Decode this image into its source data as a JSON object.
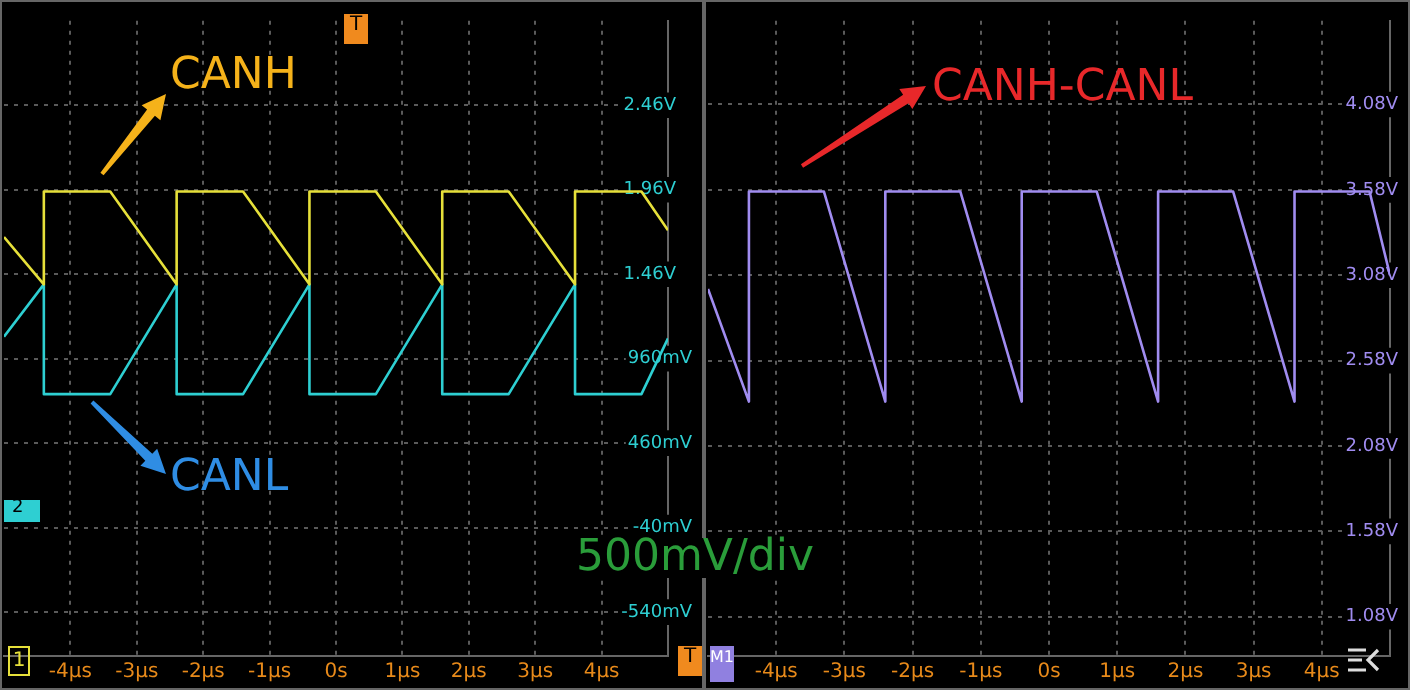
{
  "chart_data": [
    {
      "type": "line",
      "xlim": [
        -5,
        5
      ],
      "xticks": [
        {
          "value": -4,
          "label": "-4μs"
        },
        {
          "value": -3,
          "label": "-3μs"
        },
        {
          "value": -2,
          "label": "-2μs"
        },
        {
          "value": -1,
          "label": "-1μs"
        },
        {
          "value": 0,
          "label": "0s"
        },
        {
          "value": 1,
          "label": "1μs"
        },
        {
          "value": 2,
          "label": "2μs"
        },
        {
          "value": 3,
          "label": "3μs"
        },
        {
          "value": 4,
          "label": "4μs"
        }
      ],
      "ylim": [
        -0.8,
        2.96
      ],
      "yticks": [
        {
          "value": 2.46,
          "label": "2.46V"
        },
        {
          "value": 1.96,
          "label": "1.96V"
        },
        {
          "value": 1.46,
          "label": "1.46V"
        }
      ],
      "y2lim": [
        -800,
        2960
      ],
      "y2ticks": [
        {
          "value": 960,
          "label": "960mV"
        },
        {
          "value": 460,
          "label": "460mV"
        },
        {
          "value": -40,
          "label": "-40mV"
        },
        {
          "value": -540,
          "label": "-540mV"
        }
      ],
      "grid": true,
      "legend": false,
      "series": [
        {
          "name": "CANH",
          "color": "#e6e03a",
          "x": [
            -5,
            -4.4,
            -4.4,
            -3.4,
            -2.4,
            -2.4,
            -1.4,
            -0.4,
            -0.4,
            0.6,
            1.6,
            1.6,
            2.6,
            3.6,
            3.6,
            4.6,
            5
          ],
          "values": [
            1.68,
            1.4,
            1.95,
            1.95,
            1.4,
            1.95,
            1.95,
            1.4,
            1.95,
            1.95,
            1.4,
            1.95,
            1.95,
            1.4,
            1.95,
            1.95,
            1.72
          ]
        },
        {
          "name": "CANL",
          "color": "#2ecfd2",
          "x": [
            -5,
            -4.4,
            -4.4,
            -3.4,
            -2.4,
            -2.4,
            -1.4,
            -0.4,
            -0.4,
            0.6,
            1.6,
            1.6,
            2.6,
            3.6,
            3.6,
            4.6,
            5
          ],
          "values": [
            1.09,
            1.4,
            0.75,
            0.75,
            1.4,
            0.75,
            0.75,
            1.4,
            0.75,
            0.75,
            1.4,
            0.75,
            0.75,
            1.4,
            0.75,
            0.75,
            1.08
          ]
        }
      ],
      "annotations": [
        "T",
        "1",
        "2",
        "T",
        "500mV/div"
      ]
    },
    {
      "type": "line",
      "xlim": [
        -5,
        5
      ],
      "xticks": [
        {
          "value": -4,
          "label": "-4μs"
        },
        {
          "value": -3,
          "label": "-3μs"
        },
        {
          "value": -2,
          "label": "-2μs"
        },
        {
          "value": -1,
          "label": "-1μs"
        },
        {
          "value": 0,
          "label": "0s"
        },
        {
          "value": 1,
          "label": "1μs"
        },
        {
          "value": 2,
          "label": "2μs"
        },
        {
          "value": 3,
          "label": "3μs"
        },
        {
          "value": 4,
          "label": "4μs"
        }
      ],
      "ylim": [
        0.85,
        4.57
      ],
      "yticks": [
        {
          "value": 4.08,
          "label": "4.08V"
        },
        {
          "value": 3.58,
          "label": "3.58V"
        },
        {
          "value": 3.08,
          "label": "3.08V"
        },
        {
          "value": 2.58,
          "label": "2.58V"
        },
        {
          "value": 2.08,
          "label": "2.08V"
        },
        {
          "value": 1.58,
          "label": "1.58V"
        },
        {
          "value": 1.08,
          "label": "1.08V"
        }
      ],
      "grid": true,
      "legend": false,
      "series": [
        {
          "name": "CANH-CANL",
          "color": "#a08cf0",
          "x": [
            -5,
            -4.4,
            -4.4,
            -3.3,
            -2.4,
            -2.4,
            -1.3,
            -0.4,
            -0.4,
            0.7,
            1.6,
            1.6,
            2.7,
            3.6,
            3.6,
            4.7,
            5
          ],
          "values": [
            3.0,
            2.34,
            3.57,
            3.57,
            2.34,
            3.57,
            3.57,
            2.34,
            3.57,
            3.57,
            2.34,
            3.57,
            3.57,
            2.34,
            3.57,
            3.57,
            3.08
          ]
        }
      ],
      "annotations": [
        "M1"
      ]
    }
  ]
}
